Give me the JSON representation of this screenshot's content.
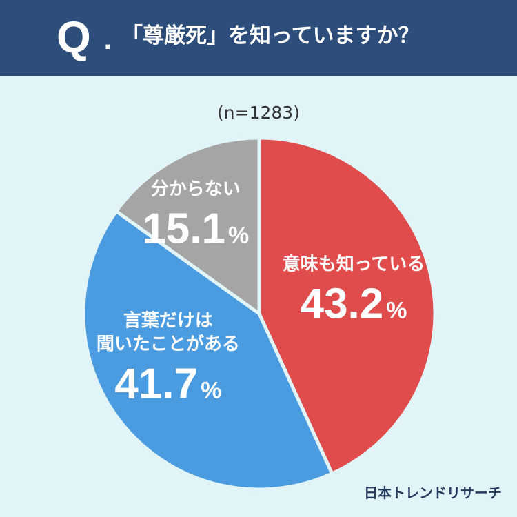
{
  "header": {
    "q_mark": "Q",
    "q_dot": ".",
    "question": "「尊厳死」を知っていますか？"
  },
  "colors": {
    "header_bg": "#2d4e7b",
    "background": "#e1f4f8",
    "know_meaning": "#e04b4c",
    "heard_word": "#4b9be0",
    "dont_know": "#a5a5a5"
  },
  "chart_data": {
    "type": "pie",
    "title": "「尊厳死」を知っていますか？",
    "sample": "(n=1283)",
    "start": "top",
    "direction": "clockwise",
    "unit": "%",
    "slices": [
      {
        "label": "意味も知っている",
        "value": 43.2,
        "value_text": "43.2",
        "color": "#e04b4c"
      },
      {
        "label": "言葉だけは\n聞いたことがある",
        "value": 41.7,
        "value_text": "41.7",
        "color": "#4b9be0"
      },
      {
        "label": "分からない",
        "value": 15.1,
        "value_text": "15.1",
        "color": "#a5a5a5"
      }
    ]
  },
  "footer": {
    "brand": "日本トレンドリサーチ"
  }
}
